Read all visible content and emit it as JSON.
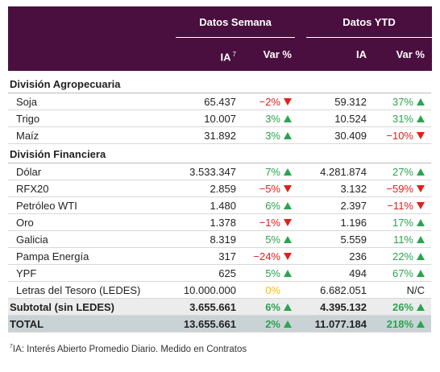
{
  "header": {
    "groups": [
      "Datos Semana",
      "Datos YTD"
    ],
    "columns": [
      {
        "label": "IA",
        "sup": "7"
      },
      {
        "label": "Var %"
      },
      {
        "label": "IA"
      },
      {
        "label": "Var %"
      }
    ]
  },
  "sections": [
    {
      "title": "División Agropecuaria",
      "rows": [
        {
          "name": "Soja",
          "cells": [
            "65.437",
            {
              "text": "−2%",
              "trend": "down"
            },
            "59.312",
            {
              "text": "37%",
              "trend": "up"
            }
          ]
        },
        {
          "name": "Trigo",
          "cells": [
            "10.007",
            {
              "text": "3%",
              "trend": "up"
            },
            "10.524",
            {
              "text": "31%",
              "trend": "up"
            }
          ]
        },
        {
          "name": "Maíz",
          "cells": [
            "31.892",
            {
              "text": "3%",
              "trend": "up"
            },
            "30.409",
            {
              "text": "−10%",
              "trend": "down"
            }
          ]
        }
      ]
    },
    {
      "title": "División Financiera",
      "rows": [
        {
          "name": "Dólar",
          "cells": [
            "3.533.347",
            {
              "text": "7%",
              "trend": "up"
            },
            "4.281.874",
            {
              "text": "27%",
              "trend": "up"
            }
          ]
        },
        {
          "name": "RFX20",
          "cells": [
            "2.859",
            {
              "text": "−5%",
              "trend": "down"
            },
            "3.132",
            {
              "text": "−59%",
              "trend": "down"
            }
          ]
        },
        {
          "name": "Petróleo WTI",
          "cells": [
            "1.480",
            {
              "text": "6%",
              "trend": "up"
            },
            "2.397",
            {
              "text": "−11%",
              "trend": "down"
            }
          ]
        },
        {
          "name": "Oro",
          "cells": [
            "1.378",
            {
              "text": "−1%",
              "trend": "down"
            },
            "1.196",
            {
              "text": "17%",
              "trend": "up"
            }
          ]
        },
        {
          "name": "Galicia",
          "cells": [
            "8.319",
            {
              "text": "5%",
              "trend": "up"
            },
            "5.559",
            {
              "text": "11%",
              "trend": "up"
            }
          ]
        },
        {
          "name": "Pampa Energía",
          "cells": [
            "317",
            {
              "text": "−24%",
              "trend": "down"
            },
            "236",
            {
              "text": "22%",
              "trend": "up"
            }
          ]
        },
        {
          "name": "YPF",
          "cells": [
            "625",
            {
              "text": "5%",
              "trend": "up"
            },
            "494",
            {
              "text": "67%",
              "trend": "up"
            }
          ]
        },
        {
          "name": "Letras del Tesoro (LEDES)",
          "cells": [
            "10.000.000",
            {
              "text": "0%",
              "trend": "flat"
            },
            "6.682.051",
            {
              "text": "N/C"
            }
          ]
        }
      ]
    }
  ],
  "summary": [
    {
      "name": "Subtotal (sin LEDES)",
      "cells": [
        "3.655.661",
        {
          "text": "6%",
          "trend": "up"
        },
        "4.395.132",
        {
          "text": "26%",
          "trend": "up"
        }
      ]
    },
    {
      "name": "TOTAL",
      "cells": [
        "13.655.661",
        {
          "text": "2%",
          "trend": "up"
        },
        "11.077.184",
        {
          "text": "218%",
          "trend": "up"
        }
      ]
    }
  ],
  "footnote": {
    "marker": "7",
    "text": "IA: Interés Abierto Promedio Diario. Medido en Contratos"
  }
}
